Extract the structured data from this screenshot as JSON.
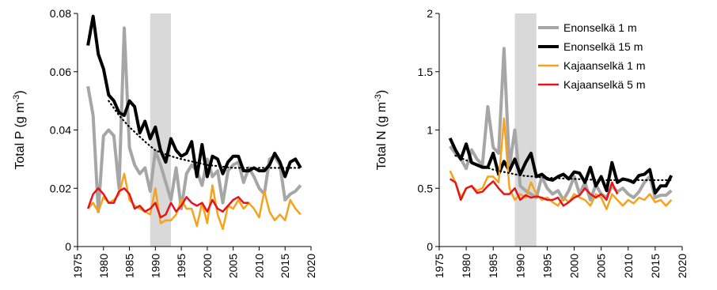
{
  "chart_data": [
    {
      "type": "line",
      "ylabel": "Total P (g m",
      "ylabel_sup": "-3",
      "ylabel_end": ")",
      "x": [
        1977,
        1978,
        1979,
        1980,
        1981,
        1982,
        1983,
        1984,
        1985,
        1986,
        1987,
        1988,
        1989,
        1990,
        1991,
        1992,
        1993,
        1994,
        1995,
        1996,
        1997,
        1998,
        1999,
        2000,
        2001,
        2002,
        2003,
        2004,
        2005,
        2006,
        2007,
        2008,
        2009,
        2010,
        2011,
        2012,
        2013,
        2014,
        2015,
        2016,
        2017,
        2018
      ],
      "xlim": [
        1975,
        2020
      ],
      "xticks": [
        1975,
        1980,
        1985,
        1990,
        1995,
        2000,
        2005,
        2010,
        2015,
        2020
      ],
      "ylim": [
        0,
        0.08
      ],
      "yticks": [
        0,
        0.02,
        0.04,
        0.06,
        0.08
      ],
      "shaded_range": [
        1989,
        1993
      ],
      "shade_color": "#d9d9d9",
      "legend": false,
      "series": [
        {
          "name": "Enonselkä 1 m",
          "color": "#a6a6a6",
          "width": 4,
          "values": [
            0.055,
            0.045,
            0.012,
            0.038,
            0.04,
            0.038,
            0.02,
            0.075,
            0.034,
            0.028,
            0.025,
            0.027,
            0.019,
            0.033,
            0.028,
            0.022,
            0.016,
            0.027,
            0.013,
            0.025,
            0.028,
            0.026,
            0.021,
            0.03,
            0.024,
            0.026,
            0.015,
            0.026,
            0.028,
            0.029,
            0.022,
            0.027,
            0.024,
            0.02,
            0.018,
            0.03,
            0.031,
            0.028,
            0.016,
            0.018,
            0.019,
            0.021
          ]
        },
        {
          "name": "Enonselkä 15 m",
          "color": "#000000",
          "width": 4,
          "values": [
            0.069,
            0.079,
            0.066,
            0.061,
            0.052,
            0.05,
            0.046,
            0.045,
            0.05,
            0.048,
            0.039,
            0.043,
            0.037,
            0.041,
            0.033,
            0.029,
            0.037,
            0.033,
            0.031,
            0.032,
            0.036,
            0.024,
            0.035,
            0.024,
            0.031,
            0.03,
            0.025,
            0.029,
            0.031,
            0.031,
            0.026,
            0.026,
            0.027,
            0.026,
            0.026,
            0.028,
            0.032,
            0.029,
            0.024,
            0.029,
            0.03,
            0.027
          ]
        },
        {
          "name": "Kajaanselkä 1 m",
          "color": "#f5a31a",
          "width": 2.5,
          "values": [
            0.013,
            0.015,
            0.012,
            0.017,
            0.015,
            0.016,
            0.018,
            0.025,
            0.016,
            0.014,
            0.013,
            0.012,
            0.011,
            0.02,
            0.008,
            0.009,
            0.009,
            0.011,
            0.016,
            0.013,
            0.013,
            0.007,
            0.015,
            0.008,
            0.021,
            0.011,
            0.006,
            0.014,
            0.013,
            0.016,
            0.013,
            0.015,
            0.013,
            0.01,
            0.019,
            0.012,
            0.009,
            0.011,
            0.009,
            0.016,
            0.013,
            0.011
          ]
        },
        {
          "name": "Kajaanselkä 5 m",
          "color": "#e8141c",
          "width": 2.5,
          "values": [
            0.013,
            0.018,
            0.02,
            0.018,
            0.015,
            0.015,
            0.019,
            0.02,
            0.018,
            0.013,
            0.014,
            0.012,
            0.013,
            0.015,
            0.01,
            0.011,
            0.015,
            0.012,
            0.014,
            0.017,
            0.015,
            0.014,
            0.015,
            0.012,
            0.016,
            0.013,
            0.012,
            0.014,
            0.016,
            0.017,
            0.015,
            0.015,
            null,
            null,
            null,
            null,
            null,
            null,
            null,
            null,
            null,
            null
          ]
        }
      ],
      "trend": {
        "color": "#000000",
        "x": [
          1981,
          1983,
          1985,
          1988,
          1990,
          1993,
          1995,
          2000,
          2005,
          2010,
          2018
        ],
        "values": [
          0.05,
          0.045,
          0.041,
          0.036,
          0.033,
          0.031,
          0.03,
          0.028,
          0.027,
          0.027,
          0.027
        ]
      }
    },
    {
      "type": "line",
      "ylabel": "Total N (g m",
      "ylabel_sup": "-3",
      "ylabel_end": ")",
      "x": [
        1977,
        1978,
        1979,
        1980,
        1981,
        1982,
        1983,
        1984,
        1985,
        1986,
        1987,
        1988,
        1989,
        1990,
        1991,
        1992,
        1993,
        1994,
        1995,
        1996,
        1997,
        1998,
        1999,
        2000,
        2001,
        2002,
        2003,
        2004,
        2005,
        2006,
        2007,
        2008,
        2009,
        2010,
        2011,
        2012,
        2013,
        2014,
        2015,
        2016,
        2017,
        2018
      ],
      "xlim": [
        1975,
        2020
      ],
      "xticks": [
        1975,
        1980,
        1985,
        1990,
        1995,
        2000,
        2005,
        2010,
        2015,
        2020
      ],
      "ylim": [
        0,
        2
      ],
      "yticks": [
        0,
        0.5,
        1,
        1.5,
        2
      ],
      "shaded_range": [
        1989,
        1993
      ],
      "shade_color": "#d9d9d9",
      "legend": "upper right",
      "series": [
        {
          "name": "Enonselkä 1 m",
          "color": "#a6a6a6",
          "width": 4,
          "values": [
            0.86,
            0.8,
            0.75,
            0.67,
            0.83,
            0.75,
            0.7,
            1.2,
            0.85,
            0.8,
            1.7,
            0.68,
            1.0,
            0.52,
            0.48,
            0.45,
            0.42,
            0.6,
            0.5,
            0.45,
            0.48,
            0.4,
            0.48,
            0.6,
            0.45,
            0.55,
            0.4,
            0.53,
            0.45,
            0.42,
            0.52,
            0.47,
            0.5,
            0.45,
            0.42,
            0.47,
            0.55,
            0.6,
            0.42,
            0.44,
            0.44,
            0.48
          ]
        },
        {
          "name": "Enonselkä 15 m",
          "color": "#000000",
          "width": 4,
          "values": [
            0.93,
            0.83,
            0.75,
            0.88,
            0.72,
            0.7,
            0.68,
            0.68,
            0.8,
            0.62,
            0.73,
            0.65,
            0.75,
            0.62,
            0.72,
            0.8,
            0.6,
            0.62,
            0.58,
            0.57,
            0.6,
            0.62,
            0.58,
            0.64,
            0.63,
            0.55,
            0.68,
            0.52,
            0.6,
            0.48,
            0.72,
            0.55,
            0.58,
            0.57,
            0.55,
            0.61,
            0.62,
            0.66,
            0.46,
            0.52,
            0.52,
            0.61
          ]
        },
        {
          "name": "Kajaanselkä 1 m",
          "color": "#f5a31a",
          "width": 2.5,
          "values": [
            0.65,
            0.55,
            0.42,
            0.5,
            0.52,
            0.48,
            0.5,
            0.6,
            0.6,
            0.55,
            1.1,
            0.5,
            0.4,
            0.45,
            0.42,
            0.55,
            0.45,
            0.4,
            0.42,
            0.38,
            0.35,
            0.42,
            0.38,
            0.45,
            0.42,
            0.4,
            0.35,
            0.45,
            0.42,
            0.32,
            0.45,
            0.4,
            0.35,
            0.4,
            0.37,
            0.42,
            0.4,
            0.45,
            0.38,
            0.4,
            0.35,
            0.4
          ]
        },
        {
          "name": "Kajaanselkä 5 m",
          "color": "#e8141c",
          "width": 2.5,
          "values": [
            0.58,
            0.55,
            0.4,
            0.5,
            0.52,
            0.46,
            0.47,
            0.52,
            0.56,
            0.5,
            0.45,
            0.45,
            0.5,
            0.4,
            0.44,
            0.42,
            0.43,
            0.42,
            0.4,
            0.4,
            0.42,
            0.35,
            0.38,
            0.42,
            0.44,
            0.5,
            0.45,
            0.42,
            0.45,
            0.4,
            0.55,
            0.45,
            null,
            null,
            null,
            null,
            null,
            null,
            null,
            null,
            null,
            null
          ]
        }
      ],
      "trend": {
        "color": "#000000",
        "x": [
          1978,
          1980,
          1983,
          1985,
          1988,
          1990,
          1995,
          2000,
          2005,
          2010,
          2018
        ],
        "values": [
          0.78,
          0.74,
          0.69,
          0.66,
          0.63,
          0.61,
          0.59,
          0.58,
          0.57,
          0.57,
          0.57
        ]
      }
    }
  ]
}
